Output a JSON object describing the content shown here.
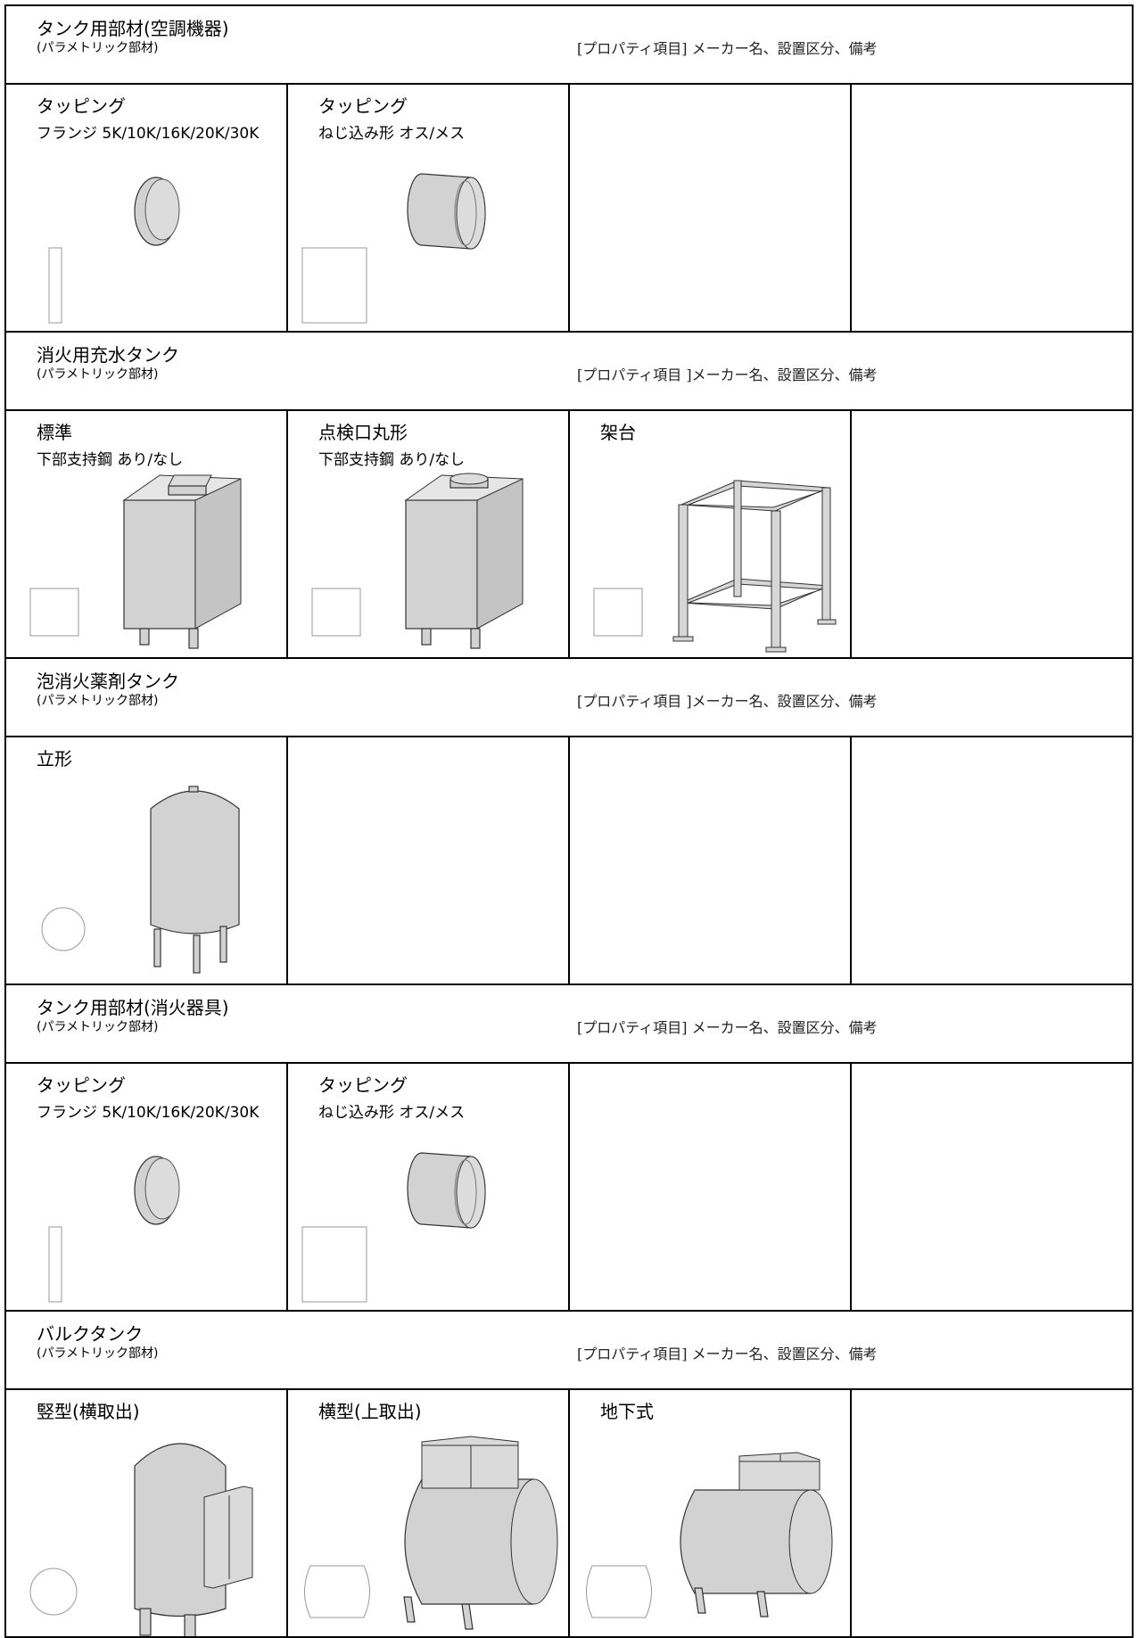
{
  "sections": [
    {
      "title": "タンク用部材(空調機器)",
      "subtitle": "(パラメトリック部材)",
      "property": "[プロパティ項目] メーカー名、設置区分、備考",
      "cells": [
        {
          "title": "タッピング",
          "subtitle": "フランジ 5K/10K/16K/20K/30K"
        },
        {
          "title": "タッピング",
          "subtitle": "ねじ込み形 オス/メス"
        }
      ]
    },
    {
      "title": "消火用充水タンク",
      "subtitle": "(パラメトリック部材)",
      "property": "[プロパティ項目 ]メーカー名、設置区分、備考",
      "cells": [
        {
          "title": "標準",
          "subtitle": "下部支持鋼 あり/なし"
        },
        {
          "title": "点検口丸形",
          "subtitle": "下部支持鋼 あり/なし"
        },
        {
          "title": "架台"
        }
      ]
    },
    {
      "title": "泡消火薬剤タンク",
      "subtitle": "(パラメトリック部材)",
      "property": "[プロパティ項目 ]メーカー名、設置区分、備考",
      "cells": [
        {
          "title": "立形"
        }
      ]
    },
    {
      "title": "タンク用部材(消火器具)",
      "subtitle": "(パラメトリック部材)",
      "property": "[プロパティ項目] メーカー名、設置区分、備考",
      "cells": [
        {
          "title": "タッピング",
          "subtitle": "フランジ 5K/10K/16K/20K/30K"
        },
        {
          "title": "タッピング",
          "subtitle": "ねじ込み形 オス/メス"
        }
      ]
    },
    {
      "title": "バルクタンク",
      "subtitle": "(パラメトリック部材)",
      "property": "[プロパティ項目] メーカー名、設置区分、備考",
      "cells": [
        {
          "title": "竪型(横取出)"
        },
        {
          "title": "横型(上取出)"
        },
        {
          "title": "地下式"
        }
      ]
    }
  ]
}
